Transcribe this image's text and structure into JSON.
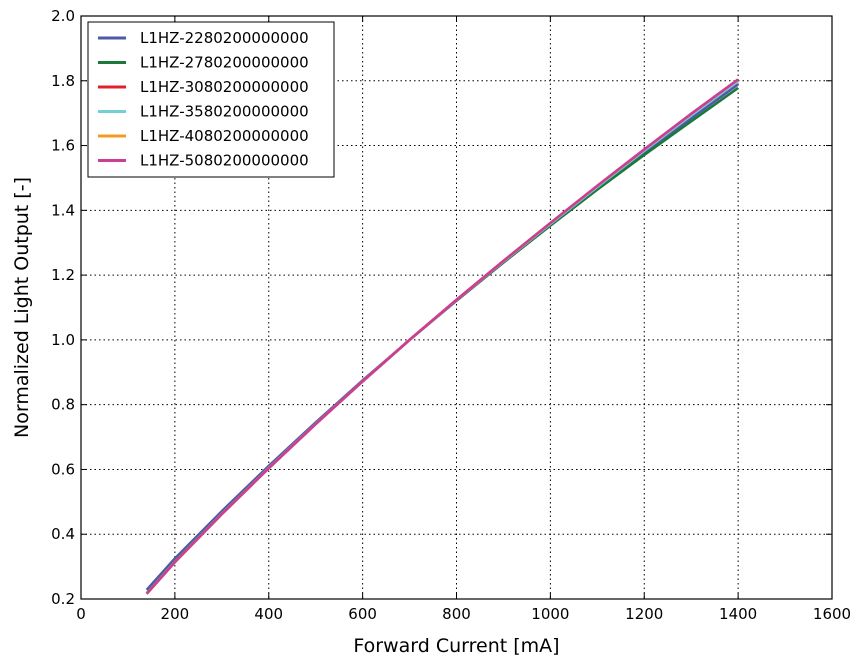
{
  "chart_data": {
    "type": "line",
    "title": "",
    "xlabel": "Forward Current [mA]",
    "ylabel": "Normalized Light Output [-]",
    "xlim": [
      0,
      1600
    ],
    "ylim": [
      0.2,
      2.0
    ],
    "xticks": [
      "0",
      "200",
      "400",
      "600",
      "800",
      "1000",
      "1200",
      "1400",
      "1600"
    ],
    "yticks": [
      "0.2",
      "0.4",
      "0.6",
      "0.8",
      "1.0",
      "1.2",
      "1.4",
      "1.6",
      "1.8",
      "2.0"
    ],
    "grid": true,
    "grid_style": "dotted",
    "legend_position": "top-left",
    "x": [
      140,
      200,
      300,
      400,
      500,
      600,
      700,
      800,
      900,
      1000,
      1100,
      1200,
      1300,
      1400
    ],
    "series": [
      {
        "name": "L1HZ-2280200000000",
        "color": "#4C5AA8",
        "values": [
          0.228,
          0.325,
          0.471,
          0.611,
          0.745,
          0.875,
          1.0,
          1.121,
          1.239,
          1.354,
          1.466,
          1.576,
          1.684,
          1.789
        ]
      },
      {
        "name": "L1HZ-2780200000000",
        "color": "#1B7A3A",
        "values": [
          0.218,
          0.316,
          0.464,
          0.605,
          0.741,
          0.872,
          1.0,
          1.122,
          1.239,
          1.353,
          1.464,
          1.571,
          1.675,
          1.778
        ]
      },
      {
        "name": "L1HZ-3080200000000",
        "color": "#E0202A",
        "values": [
          0.216,
          0.314,
          0.462,
          0.604,
          0.74,
          0.872,
          1.0,
          1.123,
          1.242,
          1.359,
          1.473,
          1.585,
          1.694,
          1.8
        ]
      },
      {
        "name": "L1HZ-3580200000000",
        "color": "#72CFD6",
        "values": [
          0.217,
          0.315,
          0.463,
          0.605,
          0.741,
          0.872,
          1.0,
          1.123,
          1.242,
          1.358,
          1.472,
          1.584,
          1.693,
          1.799
        ]
      },
      {
        "name": "L1HZ-4080200000000",
        "color": "#F39A25",
        "values": [
          0.216,
          0.314,
          0.462,
          0.604,
          0.74,
          0.872,
          1.0,
          1.124,
          1.244,
          1.361,
          1.476,
          1.588,
          1.698,
          1.804
        ]
      },
      {
        "name": "L1HZ-5080200000000",
        "color": "#CC3D96",
        "values": [
          0.216,
          0.314,
          0.462,
          0.604,
          0.74,
          0.872,
          1.0,
          1.124,
          1.244,
          1.361,
          1.476,
          1.588,
          1.698,
          1.804
        ]
      }
    ]
  }
}
